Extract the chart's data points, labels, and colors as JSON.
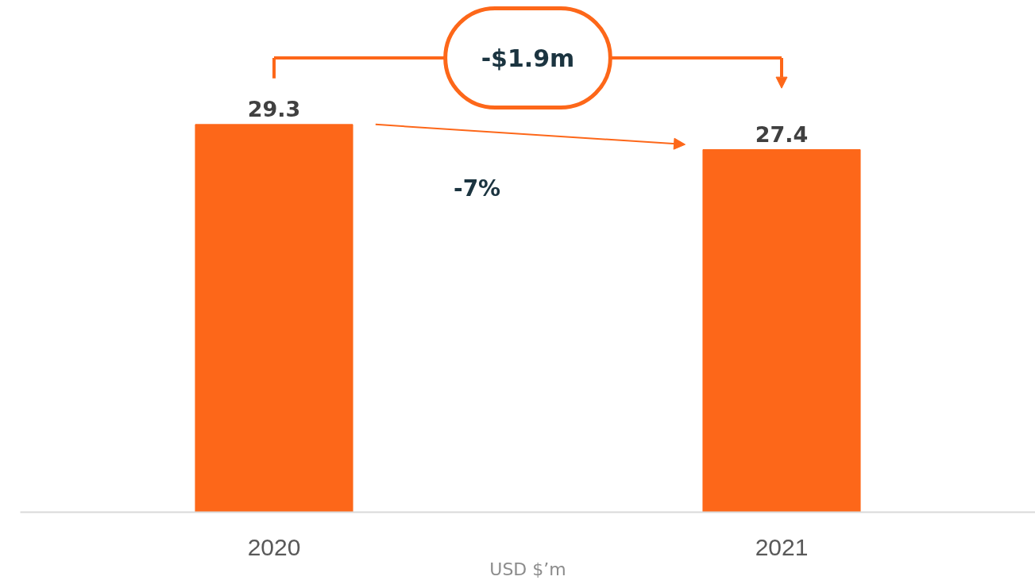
{
  "chart_data": {
    "type": "bar",
    "categories": [
      "2020",
      "2021"
    ],
    "values": [
      29.3,
      27.4
    ],
    "color": "#fd6719",
    "data_labels": true,
    "xlabel": "USD $’m",
    "tick_labels": "x",
    "grid": false,
    "annotations": [
      "-$1.9m",
      "-7%"
    ]
  }
}
